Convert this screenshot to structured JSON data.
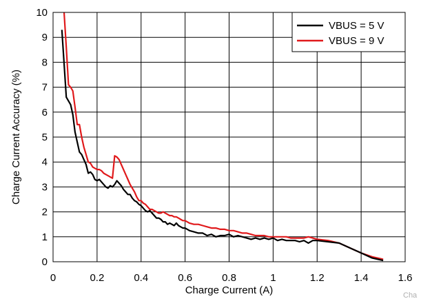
{
  "corner_text": "Cha",
  "chart_data": {
    "type": "line",
    "title": "",
    "xlabel": "Charge Current (A)",
    "ylabel": "Charge Current Accuracy (%)",
    "xlim": [
      0,
      1.6
    ],
    "ylim": [
      0,
      10
    ],
    "xticks": [
      0,
      0.2,
      0.4,
      0.6,
      0.8,
      1,
      1.2,
      1.4,
      1.6
    ],
    "xtick_labels": [
      "0",
      "0.2",
      "0.4",
      "0.6",
      "0.8",
      "1",
      "1.2",
      "1.4",
      "1.6"
    ],
    "yticks": [
      0,
      1,
      2,
      3,
      4,
      5,
      6,
      7,
      8,
      9,
      10
    ],
    "ytick_labels": [
      "0",
      "1",
      "2",
      "3",
      "4",
      "5",
      "6",
      "7",
      "8",
      "9",
      "10"
    ],
    "grid": true,
    "legend_position": "top-right",
    "colors": {
      "vbus5": "#000000",
      "vbus9": "#e0191b"
    },
    "series": [
      {
        "name": "VBUS = 5 V",
        "x": [
          0.04,
          0.06,
          0.08,
          0.09,
          0.1,
          0.11,
          0.12,
          0.13,
          0.14,
          0.15,
          0.16,
          0.17,
          0.18,
          0.19,
          0.2,
          0.21,
          0.22,
          0.23,
          0.24,
          0.25,
          0.26,
          0.27,
          0.28,
          0.29,
          0.3,
          0.31,
          0.32,
          0.33,
          0.34,
          0.35,
          0.36,
          0.37,
          0.38,
          0.39,
          0.4,
          0.41,
          0.42,
          0.43,
          0.44,
          0.45,
          0.46,
          0.47,
          0.48,
          0.49,
          0.5,
          0.51,
          0.52,
          0.53,
          0.54,
          0.55,
          0.56,
          0.57,
          0.58,
          0.59,
          0.6,
          0.62,
          0.64,
          0.66,
          0.68,
          0.7,
          0.72,
          0.74,
          0.76,
          0.78,
          0.8,
          0.82,
          0.84,
          0.86,
          0.88,
          0.9,
          0.92,
          0.94,
          0.96,
          0.98,
          1.0,
          1.02,
          1.04,
          1.06,
          1.08,
          1.1,
          1.12,
          1.14,
          1.16,
          1.18,
          1.2,
          1.25,
          1.3,
          1.35,
          1.4,
          1.45,
          1.5
        ],
        "values": [
          9.3,
          6.6,
          6.3,
          5.9,
          5.2,
          4.8,
          4.4,
          4.3,
          4.1,
          3.9,
          3.55,
          3.6,
          3.5,
          3.3,
          3.25,
          3.3,
          3.2,
          3.1,
          3.0,
          2.95,
          3.05,
          3.0,
          3.1,
          3.25,
          3.15,
          3.05,
          2.9,
          2.8,
          2.7,
          2.7,
          2.55,
          2.45,
          2.4,
          2.3,
          2.25,
          2.15,
          2.05,
          2.0,
          2.05,
          1.95,
          1.85,
          1.75,
          1.75,
          1.7,
          1.6,
          1.6,
          1.5,
          1.55,
          1.5,
          1.45,
          1.55,
          1.45,
          1.4,
          1.35,
          1.35,
          1.25,
          1.2,
          1.15,
          1.15,
          1.05,
          1.1,
          1.0,
          1.05,
          1.05,
          1.1,
          1.0,
          1.05,
          1.0,
          0.95,
          0.9,
          0.95,
          0.9,
          0.95,
          0.9,
          0.95,
          0.85,
          0.9,
          0.85,
          0.85,
          0.85,
          0.8,
          0.85,
          0.75,
          0.85,
          0.85,
          0.8,
          0.75,
          0.55,
          0.35,
          0.15,
          0.05
        ]
      },
      {
        "name": "VBUS = 9 V",
        "x": [
          0.05,
          0.06,
          0.07,
          0.08,
          0.09,
          0.1,
          0.11,
          0.12,
          0.13,
          0.14,
          0.15,
          0.16,
          0.17,
          0.18,
          0.19,
          0.2,
          0.21,
          0.22,
          0.23,
          0.24,
          0.25,
          0.26,
          0.27,
          0.28,
          0.29,
          0.3,
          0.31,
          0.32,
          0.33,
          0.34,
          0.35,
          0.36,
          0.37,
          0.38,
          0.39,
          0.4,
          0.41,
          0.42,
          0.43,
          0.44,
          0.45,
          0.46,
          0.47,
          0.48,
          0.49,
          0.5,
          0.51,
          0.52,
          0.53,
          0.54,
          0.55,
          0.56,
          0.57,
          0.58,
          0.59,
          0.6,
          0.62,
          0.64,
          0.66,
          0.68,
          0.7,
          0.72,
          0.74,
          0.76,
          0.78,
          0.8,
          0.82,
          0.84,
          0.86,
          0.88,
          0.9,
          0.92,
          0.94,
          0.96,
          0.98,
          1.0,
          1.02,
          1.04,
          1.06,
          1.08,
          1.1,
          1.12,
          1.14,
          1.16,
          1.18,
          1.2,
          1.25,
          1.3,
          1.35,
          1.4,
          1.45,
          1.5
        ],
        "values": [
          10.0,
          8.6,
          7.1,
          7.0,
          6.85,
          6.2,
          5.5,
          5.5,
          5.0,
          4.6,
          4.3,
          4.0,
          3.95,
          3.8,
          3.75,
          3.7,
          3.7,
          3.65,
          3.55,
          3.5,
          3.45,
          3.4,
          3.35,
          4.25,
          4.2,
          4.1,
          3.9,
          3.7,
          3.5,
          3.3,
          3.1,
          2.95,
          2.8,
          2.6,
          2.45,
          2.45,
          2.35,
          2.3,
          2.2,
          2.1,
          2.1,
          2.05,
          2.0,
          1.95,
          1.95,
          2.0,
          1.95,
          1.9,
          1.85,
          1.85,
          1.8,
          1.8,
          1.75,
          1.7,
          1.65,
          1.65,
          1.55,
          1.5,
          1.5,
          1.45,
          1.4,
          1.35,
          1.35,
          1.3,
          1.3,
          1.25,
          1.25,
          1.2,
          1.15,
          1.15,
          1.1,
          1.05,
          1.05,
          1.05,
          1.0,
          1.0,
          1.0,
          1.0,
          1.0,
          0.95,
          0.95,
          0.95,
          0.95,
          1.0,
          0.95,
          0.9,
          0.85,
          0.75,
          0.55,
          0.35,
          0.2,
          0.1
        ]
      }
    ]
  }
}
